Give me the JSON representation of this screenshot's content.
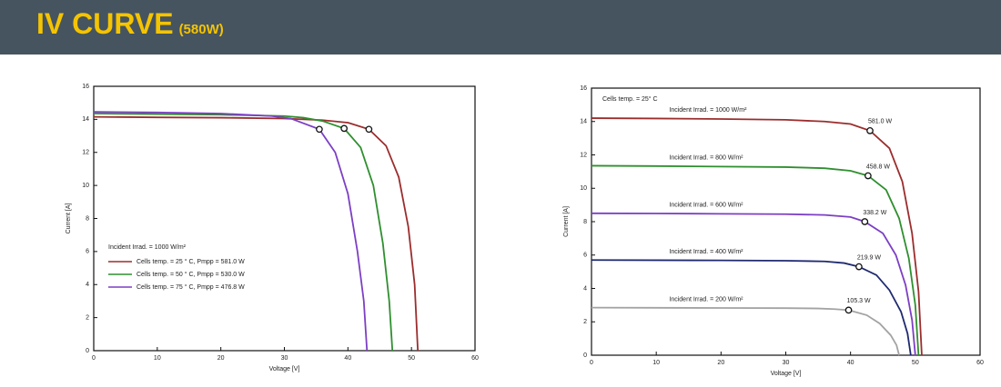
{
  "header": {
    "title": "IV CURVE",
    "subtitle": "(580W)"
  },
  "chart_data": [
    {
      "type": "line",
      "xlabel": "Voltage [V]",
      "ylabel": "Current [A]",
      "xlim": [
        0,
        60
      ],
      "xticks": [
        0,
        10,
        20,
        30,
        40,
        50,
        60
      ],
      "ylim": [
        0,
        16
      ],
      "yticks": [
        0,
        2,
        4,
        6,
        8,
        10,
        12,
        14,
        16
      ],
      "legend": "lower left",
      "legend_title": "Incident Irrad. = 1000 W/m²",
      "series": [
        {
          "name": "Cells temp. = 25 ° C,  Pmpp = 581.0 W",
          "color": "#9b2d2d",
          "x": [
            0,
            10,
            20,
            30,
            36,
            40,
            43.3,
            46,
            48,
            49.5,
            50.5,
            51
          ],
          "values": [
            14.15,
            14.12,
            14.1,
            14.05,
            13.95,
            13.8,
            13.4,
            12.4,
            10.5,
            7.5,
            4,
            0
          ],
          "mpp": [
            43.3,
            13.4
          ]
        },
        {
          "name": "Cells temp. = 50 ° C,  Pmpp = 530.0 W",
          "color": "#2f8f2f",
          "x": [
            0,
            10,
            20,
            30,
            33,
            36,
            39.4,
            42,
            44,
            45.5,
            46.5,
            47
          ],
          "values": [
            14.35,
            14.32,
            14.28,
            14.2,
            14.1,
            13.9,
            13.45,
            12.3,
            10,
            6.5,
            3,
            0
          ],
          "mpp": [
            39.4,
            13.45
          ]
        },
        {
          "name": "Cells temp. = 75 ° C,  Pmpp = 476.8 W",
          "color": "#7c3fc4",
          "x": [
            0,
            10,
            20,
            28,
            31,
            35.5,
            38,
            40,
            41.5,
            42.5,
            43
          ],
          "values": [
            14.45,
            14.42,
            14.35,
            14.2,
            14.05,
            13.4,
            12,
            9.5,
            6,
            3,
            0
          ],
          "mpp": [
            35.5,
            13.4
          ]
        }
      ]
    },
    {
      "type": "line",
      "xlabel": "Voltage [V]",
      "ylabel": "Current [A]",
      "xlim": [
        0,
        60
      ],
      "xticks": [
        0,
        10,
        20,
        30,
        40,
        50,
        60
      ],
      "ylim": [
        0,
        16
      ],
      "yticks": [
        0,
        2,
        4,
        6,
        8,
        10,
        12,
        14,
        16
      ],
      "legend": "inline",
      "annotation": "Cells temp. = 25° C",
      "series": [
        {
          "name": "Incident Irrad. = 1000 W/m²",
          "color": "#9b2d2d",
          "x": [
            0,
            10,
            20,
            30,
            36,
            40,
            43,
            46,
            48,
            49.5,
            50.5,
            51
          ],
          "values": [
            14.2,
            14.18,
            14.15,
            14.1,
            14.0,
            13.85,
            13.45,
            12.4,
            10.4,
            7.3,
            3.8,
            0
          ],
          "mpp": [
            43,
            13.45
          ],
          "mpp_label": "581.0 W"
        },
        {
          "name": "Incident Irrad. = 800 W/m²",
          "color": "#2f8f2f",
          "x": [
            0,
            10,
            20,
            30,
            36,
            40,
            42.7,
            45.5,
            47.5,
            49,
            50,
            50.5
          ],
          "values": [
            11.35,
            11.33,
            11.3,
            11.27,
            11.2,
            11.05,
            10.75,
            9.9,
            8.2,
            5.8,
            3,
            0
          ],
          "mpp": [
            42.7,
            10.75
          ],
          "mpp_label": "458.8 W"
        },
        {
          "name": "Incident Irrad. = 600 W/m²",
          "color": "#7c3fc4",
          "x": [
            0,
            10,
            20,
            30,
            36,
            40,
            42.2,
            45,
            47,
            48.5,
            49.5,
            50
          ],
          "values": [
            8.5,
            8.49,
            8.47,
            8.45,
            8.4,
            8.28,
            8.0,
            7.3,
            6,
            4.2,
            2.1,
            0
          ],
          "mpp": [
            42.2,
            8.0
          ],
          "mpp_label": "338.2 W"
        },
        {
          "name": "Incident Irrad. = 400 W/m²",
          "color": "#1f2a70",
          "x": [
            0,
            10,
            20,
            30,
            36,
            39,
            41.3,
            44,
            46,
            47.8,
            48.8,
            49.3
          ],
          "values": [
            5.7,
            5.69,
            5.68,
            5.66,
            5.62,
            5.52,
            5.3,
            4.8,
            3.9,
            2.6,
            1.3,
            0
          ],
          "mpp": [
            41.3,
            5.3
          ],
          "mpp_label": "219.9 W"
        },
        {
          "name": "Incident Irrad. = 200 W/m²",
          "color": "#a3a3a3",
          "x": [
            0,
            10,
            20,
            30,
            35,
            37.5,
            39.7,
            42.5,
            44.5,
            46.2,
            47.1,
            47.5
          ],
          "values": [
            2.85,
            2.84,
            2.83,
            2.82,
            2.8,
            2.76,
            2.7,
            2.4,
            1.9,
            1.2,
            0.6,
            0
          ],
          "mpp": [
            39.7,
            2.7
          ],
          "mpp_label": "105.3 W"
        }
      ]
    }
  ]
}
